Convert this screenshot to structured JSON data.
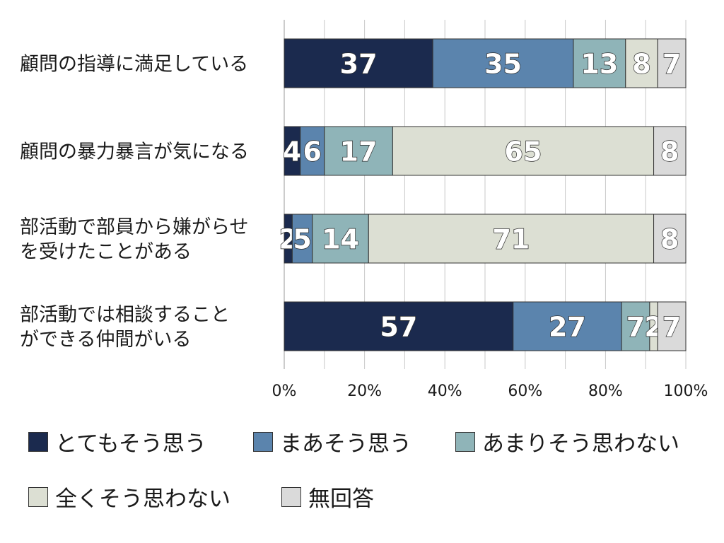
{
  "chart_data": {
    "type": "bar",
    "orientation": "horizontal",
    "stacked": true,
    "percent": true,
    "categories": [
      "顧問の指導に満足している",
      "顧問の暴力暴言が気になる",
      "部活動で部員から嫌がらせを受けたことがある",
      "部活動では相談することができる仲間がいる"
    ],
    "category_lines": [
      [
        "顧問の指導に満足している"
      ],
      [
        "顧問の暴力暴言が気になる"
      ],
      [
        "部活動で部員から嫌がらせ",
        "を受けたことがある"
      ],
      [
        "部活動では相談すること",
        "ができる仲間がいる"
      ]
    ],
    "series": [
      {
        "name": "とてもそう思う",
        "color": "#1b2a4e",
        "values": [
          37,
          4,
          2,
          57
        ]
      },
      {
        "name": "まあそう思う",
        "color": "#5b84ad",
        "values": [
          35,
          6,
          5,
          27
        ]
      },
      {
        "name": "あまりそう思わない",
        "color": "#8fb4b8",
        "values": [
          13,
          17,
          14,
          7
        ]
      },
      {
        "name": "全くそう思わない",
        "color": "#dcdfd3",
        "values": [
          8,
          65,
          71,
          2
        ]
      },
      {
        "name": "無回答",
        "color": "#dadada",
        "values": [
          7,
          8,
          8,
          7
        ]
      }
    ],
    "x_ticks": [
      "0%",
      "20%",
      "40%",
      "60%",
      "80%",
      "100%"
    ],
    "xlim": [
      0,
      100
    ],
    "grid": true,
    "legend_position": "bottom",
    "title": "",
    "xlabel": "",
    "ylabel": ""
  }
}
